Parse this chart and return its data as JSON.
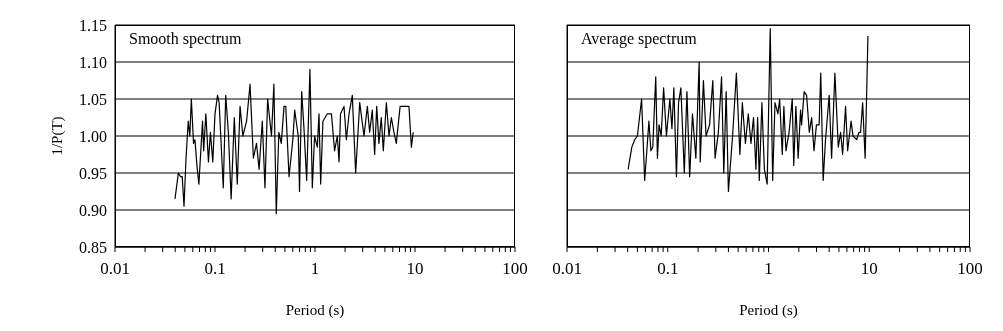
{
  "chart_data": [
    {
      "type": "line",
      "title": "Smooth spectrum",
      "xlabel": "Period (s)",
      "ylabel": "1/P(T)",
      "log": "x",
      "grid": "y",
      "xlim": [
        0.01,
        100
      ],
      "ylim": [
        0.85,
        1.15
      ],
      "xticks": [
        0.01,
        {
          "value": 0.02,
          "label": null
        },
        {
          "value": 0.03,
          "label": null
        },
        {
          "value": 0.04,
          "label": null
        },
        {
          "value": 0.05,
          "label": null
        },
        {
          "value": 0.06,
          "label": null
        },
        {
          "value": 0.07,
          "label": null
        },
        {
          "value": 0.08,
          "label": null
        },
        {
          "value": 0.09,
          "label": null
        },
        0.1,
        {
          "value": 0.2,
          "label": null
        },
        {
          "value": 0.3,
          "label": null
        },
        {
          "value": 0.4,
          "label": null
        },
        {
          "value": 0.5,
          "label": null
        },
        {
          "value": 0.6,
          "label": null
        },
        {
          "value": 0.7,
          "label": null
        },
        {
          "value": 0.8,
          "label": null
        },
        {
          "value": 0.9,
          "label": null
        },
        1,
        {
          "value": 2,
          "label": null
        },
        {
          "value": 3,
          "label": null
        },
        {
          "value": 4,
          "label": null
        },
        {
          "value": 5,
          "label": null
        },
        {
          "value": 6,
          "label": null
        },
        {
          "value": 7,
          "label": null
        },
        {
          "value": 8,
          "label": null
        },
        {
          "value": 9,
          "label": null
        },
        10,
        {
          "value": 20,
          "label": null
        },
        {
          "value": 30,
          "label": null
        },
        {
          "value": 40,
          "label": null
        },
        {
          "value": 50,
          "label": null
        },
        {
          "value": 60,
          "label": null
        },
        {
          "value": 70,
          "label": null
        },
        {
          "value": 80,
          "label": null
        },
        {
          "value": 90,
          "label": null
        },
        100
      ],
      "yticks": [
        0.85,
        {
          "value": 0.9,
          "label": "0.90"
        },
        0.95,
        {
          "value": 1.0,
          "label": "1.00"
        },
        1.05,
        {
          "value": 1.1,
          "label": "1.10"
        },
        1.15
      ],
      "series": [
        {
          "color": "#000000",
          "x": [
            0.0398,
            0.043,
            0.0453,
            0.047,
            0.049,
            0.0513,
            0.054,
            0.056,
            0.058,
            0.061,
            0.063,
            0.066,
            0.069,
            0.075,
            0.077,
            0.081,
            0.086,
            0.09,
            0.095,
            0.1,
            0.106,
            0.11,
            0.121,
            0.128,
            0.136,
            0.145,
            0.156,
            0.167,
            0.178,
            0.19,
            0.207,
            0.224,
            0.242,
            0.26,
            0.276,
            0.297,
            0.316,
            0.336,
            0.367,
            0.388,
            0.41,
            0.435,
            0.46,
            0.49,
            0.51,
            0.55,
            0.6,
            0.626,
            0.68,
            0.7,
            0.736,
            0.776,
            0.825,
            0.89,
            0.94,
            0.99,
            1.055,
            1.096,
            1.14,
            1.2,
            1.33,
            1.46,
            1.57,
            1.67,
            1.74,
            1.8,
            1.95,
            2.06,
            2.19,
            2.36,
            2.55,
            2.8,
            3.09,
            3.34,
            3.52,
            3.74,
            3.95,
            4.14,
            4.36,
            4.6,
            4.82,
            5.17,
            5.5,
            5.8,
            6.16,
            6.5,
            7.1,
            7.77,
            8.4,
            8.7,
            9.2,
            9.6
          ],
          "values": [
            0.915,
            0.95,
            0.945,
            0.945,
            0.905,
            0.97,
            1.02,
            1.0,
            1.05,
            0.99,
            0.995,
            0.96,
            0.935,
            1.02,
            0.98,
            1.03,
            0.965,
            1.005,
            0.965,
            1.03,
            1.055,
            1.045,
            0.93,
            1.055,
            1.005,
            0.915,
            1.025,
            0.935,
            1.04,
            1.0,
            1.02,
            1.07,
            0.97,
            0.99,
            0.955,
            1.02,
            0.93,
            1.05,
            1.0,
            1.07,
            0.895,
            1.005,
            0.99,
            1.04,
            1.04,
            0.945,
            0.995,
            1.035,
            1.0,
            0.925,
            1.06,
            1.01,
            0.94,
            1.09,
            0.93,
            1.0,
            0.985,
            1.03,
            0.935,
            1.02,
            1.03,
            1.03,
            0.98,
            1.0,
            0.965,
            1.03,
            1.04,
            0.995,
            1.03,
            1.055,
            0.95,
            1.045,
            1.0,
            1.04,
            1.005,
            1.035,
            0.975,
            1.04,
            0.99,
            1.025,
            0.98,
            1.045,
            1.0,
            1.025,
            1.005,
            0.99,
            1.04,
            1.04,
            1.04,
            1.04,
            0.985,
            1.005
          ]
        }
      ]
    },
    {
      "type": "line",
      "title": "Average spectrum",
      "xlabel": "Period (s)",
      "log": "x",
      "grid": "y",
      "tick_labels": "x",
      "xlim": [
        0.01,
        100
      ],
      "ylim": [
        0.85,
        1.15
      ],
      "xticks": [
        0.01,
        {
          "value": 0.02,
          "label": null
        },
        {
          "value": 0.03,
          "label": null
        },
        {
          "value": 0.04,
          "label": null
        },
        {
          "value": 0.05,
          "label": null
        },
        {
          "value": 0.06,
          "label": null
        },
        {
          "value": 0.07,
          "label": null
        },
        {
          "value": 0.08,
          "label": null
        },
        {
          "value": 0.09,
          "label": null
        },
        0.1,
        {
          "value": 0.2,
          "label": null
        },
        {
          "value": 0.3,
          "label": null
        },
        {
          "value": 0.4,
          "label": null
        },
        {
          "value": 0.5,
          "label": null
        },
        {
          "value": 0.6,
          "label": null
        },
        {
          "value": 0.7,
          "label": null
        },
        {
          "value": 0.8,
          "label": null
        },
        {
          "value": 0.9,
          "label": null
        },
        1,
        {
          "value": 2,
          "label": null
        },
        {
          "value": 3,
          "label": null
        },
        {
          "value": 4,
          "label": null
        },
        {
          "value": 5,
          "label": null
        },
        {
          "value": 6,
          "label": null
        },
        {
          "value": 7,
          "label": null
        },
        {
          "value": 8,
          "label": null
        },
        {
          "value": 9,
          "label": null
        },
        10,
        {
          "value": 20,
          "label": null
        },
        {
          "value": 30,
          "label": null
        },
        {
          "value": 40,
          "label": null
        },
        {
          "value": 50,
          "label": null
        },
        {
          "value": 60,
          "label": null
        },
        {
          "value": 70,
          "label": null
        },
        {
          "value": 80,
          "label": null
        },
        {
          "value": 90,
          "label": null
        },
        100
      ],
      "yticks": [
        0.85,
        0.9,
        0.95,
        1.0,
        1.05,
        1.1,
        1.15
      ],
      "series": [
        {
          "color": "#000000",
          "x": [
            0.0404,
            0.044,
            0.047,
            0.05,
            0.055,
            0.059,
            0.062,
            0.065,
            0.068,
            0.071,
            0.076,
            0.079,
            0.082,
            0.086,
            0.091,
            0.097,
            0.105,
            0.11,
            0.115,
            0.122,
            0.128,
            0.135,
            0.146,
            0.155,
            0.165,
            0.176,
            0.19,
            0.205,
            0.21,
            0.226,
            0.24,
            0.26,
            0.28,
            0.295,
            0.318,
            0.342,
            0.36,
            0.38,
            0.4,
            0.44,
            0.48,
            0.52,
            0.55,
            0.59,
            0.63,
            0.67,
            0.71,
            0.75,
            0.78,
            0.81,
            0.86,
            0.91,
            0.97,
            1.04,
            1.1,
            1.16,
            1.24,
            1.29,
            1.37,
            1.42,
            1.49,
            1.6,
            1.72,
            1.78,
            1.87,
            1.97,
            2.08,
            2.13,
            2.26,
            2.39,
            2.54,
            2.68,
            2.83,
            2.99,
            3.18,
            3.3,
            3.49,
            3.68,
            4.0,
            4.23,
            4.56,
            4.93,
            5.2,
            5.44,
            5.82,
            6.1,
            6.6,
            6.9,
            7.5,
            7.9,
            8.2,
            8.6,
            9.1,
            9.4,
            9.7
          ],
          "values": [
            0.955,
            0.985,
            0.995,
            1.0,
            1.05,
            0.94,
            0.98,
            1.02,
            0.98,
            0.985,
            1.08,
            0.97,
            1.015,
            1.0,
            1.065,
            1.0,
            1.05,
            1.01,
            1.065,
            0.945,
            1.045,
            1.065,
            0.95,
            1.06,
            0.945,
            1.03,
            0.97,
            1.1,
            0.965,
            1.075,
            1.0,
            1.015,
            1.075,
            0.97,
            1.005,
            1.08,
            0.95,
            1.06,
            0.925,
            1.0,
            1.085,
            0.975,
            1.045,
            0.99,
            1.03,
            0.99,
            1.025,
            0.955,
            1.025,
            0.94,
            1.045,
            0.955,
            0.935,
            1.145,
            0.94,
            1.045,
            1.03,
            1.05,
            0.975,
            1.04,
            0.98,
            1.005,
            1.05,
            0.96,
            1.04,
            0.97,
            1.035,
            1.015,
            1.06,
            1.055,
            1.005,
            1.025,
            0.98,
            1.015,
            1.015,
            1.085,
            0.94,
            0.995,
            1.055,
            0.97,
            1.085,
            0.985,
            1.005,
            0.975,
            1.04,
            0.98,
            1.02,
            1.0,
            0.995,
            1.005,
            1.005,
            1.045,
            0.97,
            1.05,
            1.135
          ]
        }
      ]
    }
  ]
}
